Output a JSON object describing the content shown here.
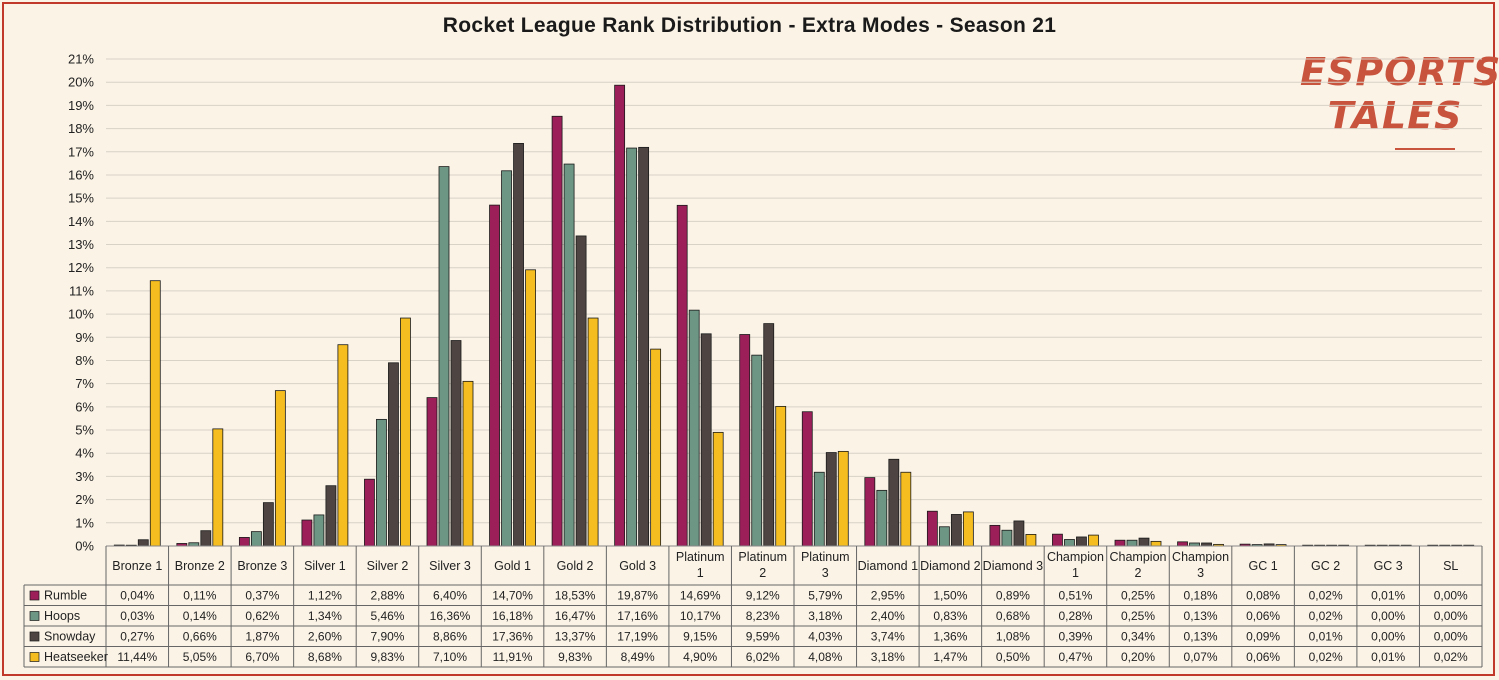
{
  "chart_data": {
    "type": "bar",
    "title": "Rocket League Rank Distribution - Extra Modes - Season 21",
    "ylim": [
      0,
      21
    ],
    "yticks": [
      "0%",
      "1%",
      "2%",
      "3%",
      "4%",
      "5%",
      "6%",
      "7%",
      "8%",
      "9%",
      "10%",
      "11%",
      "12%",
      "13%",
      "14%",
      "15%",
      "16%",
      "17%",
      "18%",
      "19%",
      "20%",
      "21%"
    ],
    "grid": true,
    "legend": "data-table-below",
    "categories": [
      "Bronze 1",
      "Bronze 2",
      "Bronze 3",
      "Silver 1",
      "Silver 2",
      "Silver 3",
      "Gold 1",
      "Gold 2",
      "Gold 3",
      "Platinum 1",
      "Platinum 2",
      "Platinum 3",
      "Diamond 1",
      "Diamond 2",
      "Diamond 3",
      "Champion 1",
      "Champion 2",
      "Champion 3",
      "GC 1",
      "GC 2",
      "GC 3",
      "SL"
    ],
    "series": [
      {
        "name": "Rumble",
        "color": "#9c1f5a",
        "values": [
          0.04,
          0.11,
          0.37,
          1.12,
          2.88,
          6.4,
          14.7,
          18.53,
          19.87,
          14.69,
          9.12,
          5.79,
          2.95,
          1.5,
          0.89,
          0.51,
          0.25,
          0.18,
          0.08,
          0.02,
          0.01,
          0.0
        ],
        "labels": [
          "0,04%",
          "0,11%",
          "0,37%",
          "1,12%",
          "2,88%",
          "6,40%",
          "14,70%",
          "18,53%",
          "19,87%",
          "14,69%",
          "9,12%",
          "5,79%",
          "2,95%",
          "1,50%",
          "0,89%",
          "0,51%",
          "0,25%",
          "0,18%",
          "0,08%",
          "0,02%",
          "0,01%",
          "0,00%"
        ]
      },
      {
        "name": "Hoops",
        "color": "#6e9685",
        "values": [
          0.03,
          0.14,
          0.62,
          1.34,
          5.46,
          16.36,
          16.18,
          16.47,
          17.16,
          10.17,
          8.23,
          3.18,
          2.4,
          0.83,
          0.68,
          0.28,
          0.25,
          0.13,
          0.06,
          0.02,
          0.0,
          0.0
        ],
        "labels": [
          "0,03%",
          "0,14%",
          "0,62%",
          "1,34%",
          "5,46%",
          "16,36%",
          "16,18%",
          "16,47%",
          "17,16%",
          "10,17%",
          "8,23%",
          "3,18%",
          "2,40%",
          "0,83%",
          "0,68%",
          "0,28%",
          "0,25%",
          "0,13%",
          "0,06%",
          "0,02%",
          "0,00%",
          "0,00%"
        ]
      },
      {
        "name": "Snowday",
        "color": "#4e4543",
        "values": [
          0.27,
          0.66,
          1.87,
          2.6,
          7.9,
          8.86,
          17.36,
          13.37,
          17.19,
          9.15,
          9.59,
          4.03,
          3.74,
          1.36,
          1.08,
          0.39,
          0.34,
          0.13,
          0.09,
          0.01,
          0.0,
          0.0
        ],
        "labels": [
          "0,27%",
          "0,66%",
          "1,87%",
          "2,60%",
          "7,90%",
          "8,86%",
          "17,36%",
          "13,37%",
          "17,19%",
          "9,15%",
          "9,59%",
          "4,03%",
          "3,74%",
          "1,36%",
          "1,08%",
          "0,39%",
          "0,34%",
          "0,13%",
          "0,09%",
          "0,01%",
          "0,00%",
          "0,00%"
        ]
      },
      {
        "name": "Heatseeker",
        "color": "#f5bd1f",
        "values": [
          11.44,
          5.05,
          6.7,
          8.68,
          9.83,
          7.1,
          11.91,
          9.83,
          8.49,
          4.9,
          6.02,
          4.08,
          3.18,
          1.47,
          0.5,
          0.47,
          0.2,
          0.07,
          0.06,
          0.02,
          0.01,
          0.02
        ],
        "labels": [
          "11,44%",
          "5,05%",
          "6,70%",
          "8,68%",
          "9,83%",
          "7,10%",
          "11,91%",
          "9,83%",
          "8,49%",
          "4,90%",
          "6,02%",
          "4,08%",
          "3,18%",
          "1,47%",
          "0,50%",
          "0,47%",
          "0,20%",
          "0,07%",
          "0,06%",
          "0,02%",
          "0,01%",
          "0,02%"
        ]
      }
    ]
  },
  "logo": {
    "line1": "ESPORTS",
    "line2": "TALES"
  }
}
